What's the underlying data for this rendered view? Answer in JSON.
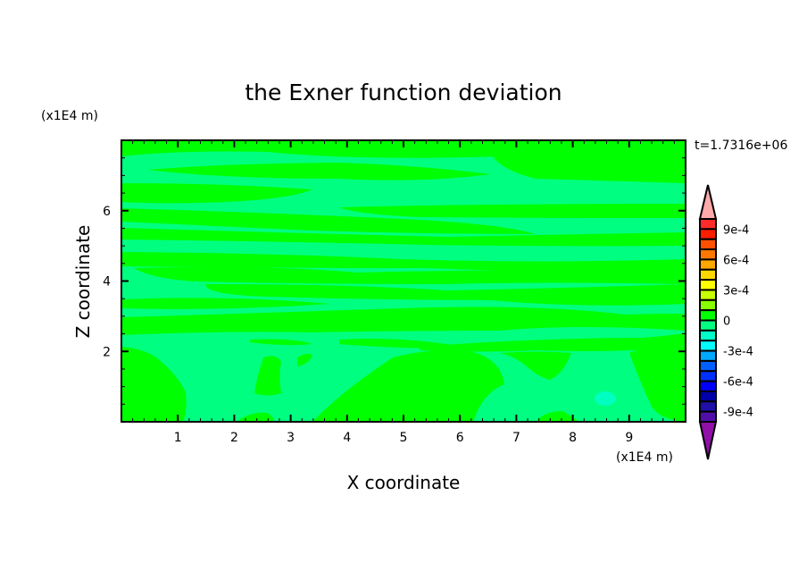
{
  "chart_data": {
    "type": "heatmap",
    "subtype": "filled-contour",
    "title": "the Exner function deviation",
    "xlabel": "X coordinate",
    "ylabel": "Z coordinate",
    "x_unit": "(x1E4 m)",
    "y_unit": "(x1E4 m)",
    "time_label": "t=1.7316e+06",
    "xlim": [
      0,
      10
    ],
    "ylim": [
      0,
      8
    ],
    "x_ticks": [
      1,
      2,
      3,
      4,
      5,
      6,
      7,
      8,
      9
    ],
    "y_ticks": [
      2,
      4,
      6
    ],
    "grid": false,
    "colorbar": {
      "levels_min": -0.001,
      "levels_max": 0.001,
      "level_step": 0.0001,
      "tick_labels": [
        "9e-4",
        "6e-4",
        "3e-4",
        "0",
        "-3e-4",
        "-6e-4",
        "-9e-4"
      ],
      "tick_values": [
        0.0009,
        0.0006,
        0.0003,
        0,
        -0.0003,
        -0.0006,
        -0.0009
      ],
      "colors_top_to_bottom": [
        "#ff2a2a",
        "#ff1e00",
        "#ff5000",
        "#ff7800",
        "#ffa800",
        "#ffd800",
        "#ffff00",
        "#c8ff00",
        "#88ff00",
        "#00ff00",
        "#00ff80",
        "#00ffc8",
        "#00ffff",
        "#00a8ff",
        "#0060ff",
        "#0030ff",
        "#0000ff",
        "#0000a8",
        "#2010a8",
        "#5010a8"
      ],
      "over_color": "#ffaaaa",
      "under_color": "#9010a8"
    },
    "field_colors": {
      "positive_band": "#00ff00",
      "negative_band": "#00ff80",
      "min_spot": "#00ffc0"
    }
  }
}
